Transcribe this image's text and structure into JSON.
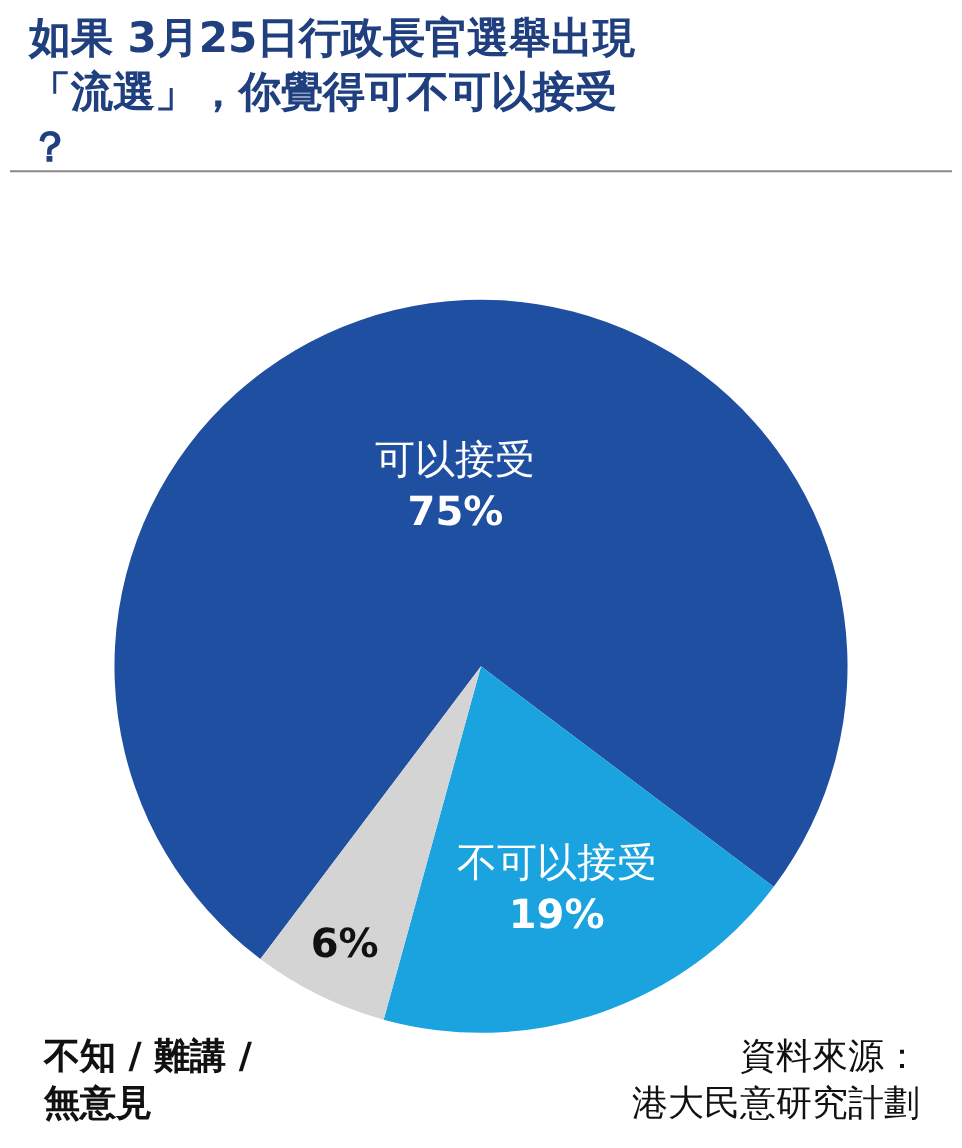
{
  "chart_data": {
    "type": "pie",
    "title": "如果 3月25日行政長官選舉出現「流選」，你覺得可不可以接受？",
    "categories": [
      "可以接受",
      "不可以接受",
      "不知 / 難講 /\n無意見"
    ],
    "values": [
      75,
      19,
      6
    ],
    "value_labels": [
      "75%",
      "19%",
      "6%"
    ],
    "colors": [
      "#1f4fa0",
      "#1ba3df",
      "#d4d4d4"
    ],
    "annotations": [
      "資料來源：港大民意研究計劃"
    ]
  }
}
